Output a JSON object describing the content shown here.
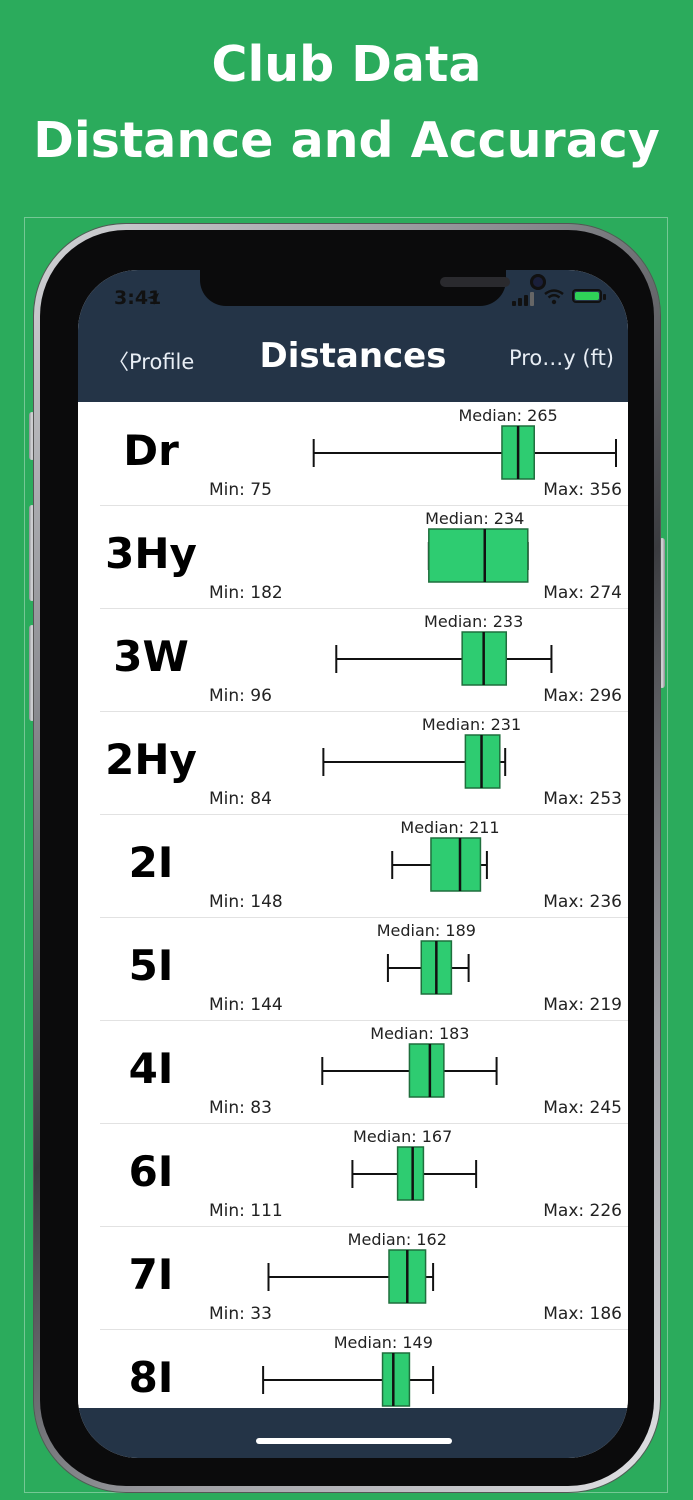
{
  "promo": {
    "line1": "Club Data",
    "line2": "Distance and Accuracy"
  },
  "status_bar": {
    "time": "3:41"
  },
  "nav": {
    "back_label": "〈Profile",
    "title": "Distances",
    "right_label": "Pro…y (ft)"
  },
  "colors": {
    "background": "#2bab5c",
    "nav_bar": "#243447",
    "box_fill": "#2ecc71",
    "box_stroke": "#1f6f3d"
  },
  "scale": {
    "min": 0,
    "max": 356
  },
  "clubs": [
    {
      "name": "Dr",
      "min": 75,
      "q1": 250,
      "median": 265,
      "q3": 280,
      "max": 356,
      "median_label": "Median: 265",
      "min_label": "Min: 75",
      "max_label": "Max: 356"
    },
    {
      "name": "3Hy",
      "min": 182,
      "q1": 182,
      "median": 234,
      "q3": 274,
      "max": 274,
      "median_label": "Median: 234",
      "min_label": "Min: 182",
      "max_label": "Max: 274"
    },
    {
      "name": "3W",
      "min": 96,
      "q1": 213,
      "median": 233,
      "q3": 254,
      "max": 296,
      "median_label": "Median: 233",
      "min_label": "Min: 96",
      "max_label": "Max: 296"
    },
    {
      "name": "2Hy",
      "min": 84,
      "q1": 216,
      "median": 231,
      "q3": 248,
      "max": 253,
      "median_label": "Median: 231",
      "min_label": "Min: 84",
      "max_label": "Max: 253"
    },
    {
      "name": "2I",
      "min": 148,
      "q1": 184,
      "median": 211,
      "q3": 230,
      "max": 236,
      "median_label": "Median: 211",
      "min_label": "Min: 148",
      "max_label": "Max: 236"
    },
    {
      "name": "5I",
      "min": 144,
      "q1": 175,
      "median": 189,
      "q3": 203,
      "max": 219,
      "median_label": "Median: 189",
      "min_label": "Min: 144",
      "max_label": "Max: 219"
    },
    {
      "name": "4I",
      "min": 83,
      "q1": 164,
      "median": 183,
      "q3": 196,
      "max": 245,
      "median_label": "Median: 183",
      "min_label": "Min: 83",
      "max_label": "Max: 245"
    },
    {
      "name": "6I",
      "min": 111,
      "q1": 153,
      "median": 167,
      "q3": 177,
      "max": 226,
      "median_label": "Median: 167",
      "min_label": "Min: 111",
      "max_label": "Max: 226"
    },
    {
      "name": "7I",
      "min": 33,
      "q1": 145,
      "median": 162,
      "q3": 179,
      "max": 186,
      "median_label": "Median: 162",
      "min_label": "Min: 33",
      "max_label": "Max: 186"
    },
    {
      "name": "8I",
      "min": 28,
      "q1": 139,
      "median": 149,
      "q3": 164,
      "max": 186,
      "median_label": "Median: 149",
      "min_label": "",
      "max_label": ""
    }
  ]
}
